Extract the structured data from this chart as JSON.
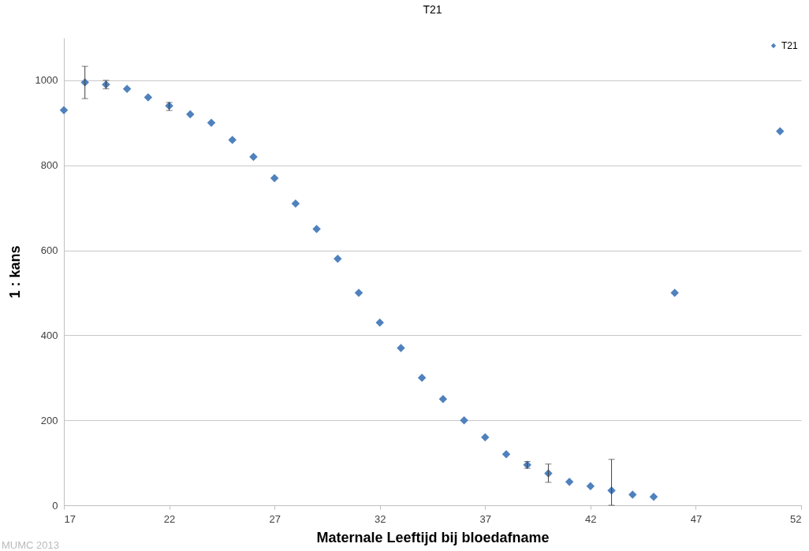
{
  "chart_data": {
    "type": "scatter",
    "title": "T21",
    "xlabel": "Maternale Leeftijd bij bloedafname",
    "ylabel": "1 : kans",
    "x": [
      17,
      18,
      19,
      20,
      21,
      22,
      23,
      24,
      25,
      26,
      27,
      28,
      29,
      30,
      31,
      32,
      33,
      34,
      35,
      36,
      37,
      38,
      39,
      40,
      41,
      42,
      43,
      44,
      45,
      46,
      51
    ],
    "series": [
      {
        "name": "T21",
        "color": "#4f81bd",
        "values": [
          930,
          995,
          990,
          980,
          960,
          940,
          920,
          900,
          860,
          820,
          770,
          710,
          650,
          580,
          500,
          430,
          370,
          300,
          250,
          200,
          160,
          120,
          95,
          75,
          55,
          45,
          35,
          25,
          20,
          500,
          880
        ],
        "errors": [
          null,
          [
            957,
            1033
          ],
          [
            980,
            1000
          ],
          null,
          null,
          [
            929,
            948
          ],
          null,
          null,
          null,
          null,
          null,
          null,
          null,
          null,
          null,
          null,
          null,
          null,
          null,
          null,
          null,
          null,
          [
            87,
            103
          ],
          [
            54,
            97
          ],
          null,
          null,
          [
            0,
            108
          ],
          null,
          null,
          null,
          null
        ]
      }
    ],
    "xlim": [
      17,
      52
    ],
    "xticks": [
      17,
      22,
      27,
      32,
      37,
      42,
      47,
      52
    ],
    "ylim": [
      0,
      1100
    ],
    "yticks": [
      0,
      200,
      400,
      600,
      800,
      1000
    ],
    "grid": "y",
    "legend": "top right",
    "marker": "diamond",
    "annotations": [
      "MUMC 2013"
    ]
  }
}
